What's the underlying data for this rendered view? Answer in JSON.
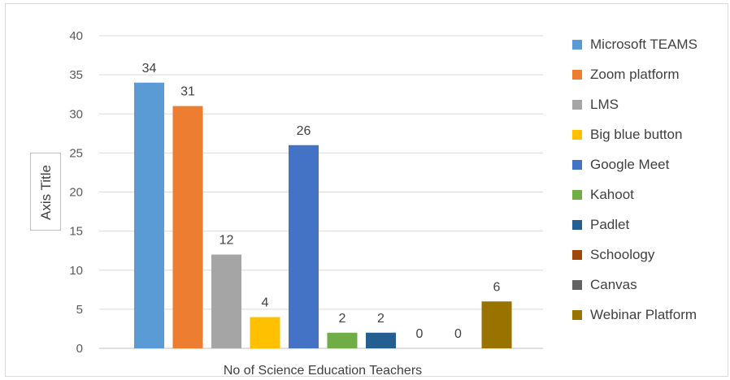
{
  "chart_data": {
    "type": "bar",
    "xlabel": "No of Science Education Teachers",
    "ylabel": "Axis Title",
    "ylim": [
      0,
      40
    ],
    "yticks": [
      0,
      5,
      10,
      15,
      20,
      25,
      30,
      35,
      40
    ],
    "grid": true,
    "legend_position": "right",
    "series": [
      {
        "name": "Microsoft TEAMS",
        "value": 34,
        "color": "#5b9bd5"
      },
      {
        "name": "Zoom platform",
        "value": 31,
        "color": "#ed7d31"
      },
      {
        "name": "LMS",
        "value": 12,
        "color": "#a5a5a5"
      },
      {
        "name": "Big blue button",
        "value": 4,
        "color": "#ffc000"
      },
      {
        "name": "Google Meet",
        "value": 26,
        "color": "#4472c4"
      },
      {
        "name": "Kahoot",
        "value": 2,
        "color": "#70ad47"
      },
      {
        "name": "Padlet",
        "value": 2,
        "color": "#255e91"
      },
      {
        "name": "Schoology",
        "value": 0,
        "color": "#9e480e"
      },
      {
        "name": "Canvas",
        "value": 0,
        "color": "#636363"
      },
      {
        "name": "Webinar Platform",
        "value": 6,
        "color": "#997300"
      }
    ]
  }
}
